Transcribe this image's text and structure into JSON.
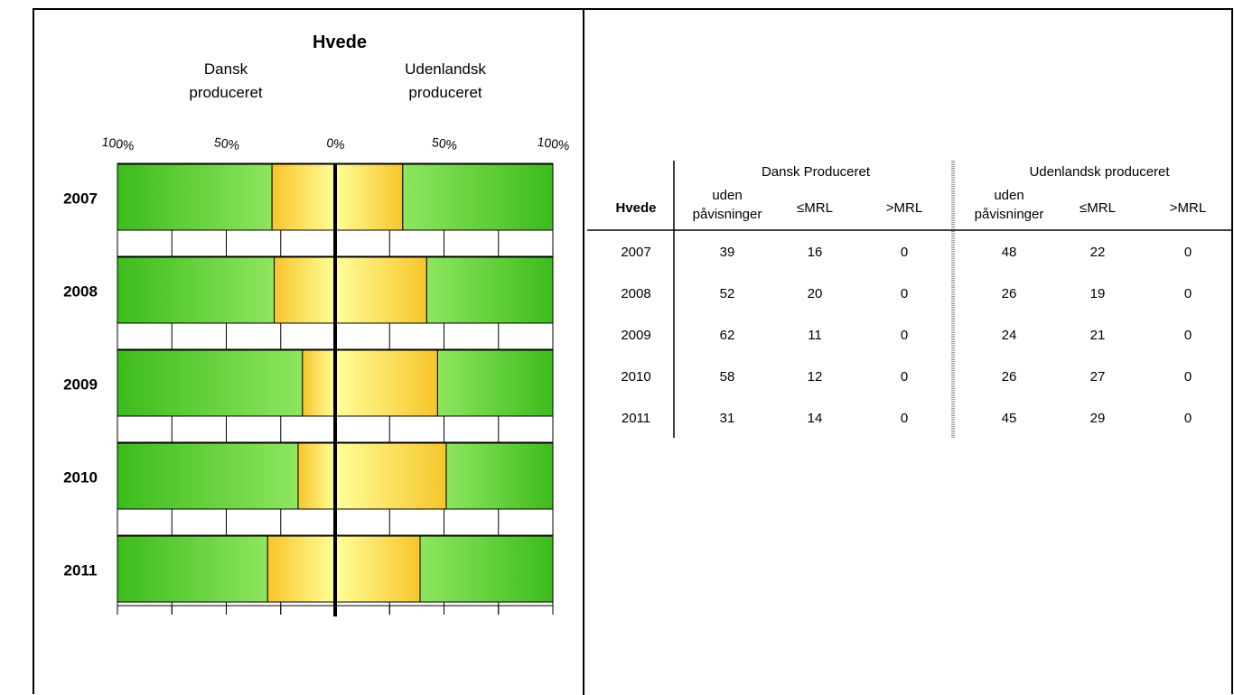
{
  "chart_data": {
    "type": "bar",
    "title": "Hvede",
    "left_label": [
      "Dansk",
      "produceret"
    ],
    "right_label": [
      "Udenlandsk",
      "produceret"
    ],
    "tick_labels": [
      "100%",
      "50%",
      "0%",
      "50%",
      "100%"
    ],
    "xlim": [
      -100,
      100
    ],
    "categories": [
      "2007",
      "2008",
      "2009",
      "2010",
      "2011"
    ],
    "dansk_detected_pct": [
      29,
      28,
      15,
      17,
      31
    ],
    "udenlandsk_detected_pct": [
      31,
      42,
      47,
      51,
      39
    ],
    "colors": {
      "green_dark": "#3cbc1c",
      "green_light": "#8ee65e",
      "yellow_light": "#ffff99",
      "yellow_dark": "#f7c52a"
    }
  },
  "table": {
    "row_header": "Hvede",
    "group_headers": [
      "Dansk Produceret",
      "Udenlandsk produceret"
    ],
    "col_headers": [
      [
        "uden",
        "påvisninger"
      ],
      [
        "≤MRL"
      ],
      [
        ">MRL"
      ],
      [
        "uden",
        "påvisninger"
      ],
      [
        "≤MRL"
      ],
      [
        ">MRL"
      ]
    ],
    "rows": [
      {
        "year": "2007",
        "values": [
          "39",
          "16",
          "0",
          "48",
          "22",
          "0"
        ]
      },
      {
        "year": "2008",
        "values": [
          "52",
          "20",
          "0",
          "26",
          "19",
          "0"
        ]
      },
      {
        "year": "2009",
        "values": [
          "62",
          "11",
          "0",
          "24",
          "21",
          "0"
        ]
      },
      {
        "year": "2010",
        "values": [
          "58",
          "12",
          "0",
          "26",
          "27",
          "0"
        ]
      },
      {
        "year": "2011",
        "values": [
          "31",
          "14",
          "0",
          "45",
          "29",
          "0"
        ]
      }
    ]
  }
}
